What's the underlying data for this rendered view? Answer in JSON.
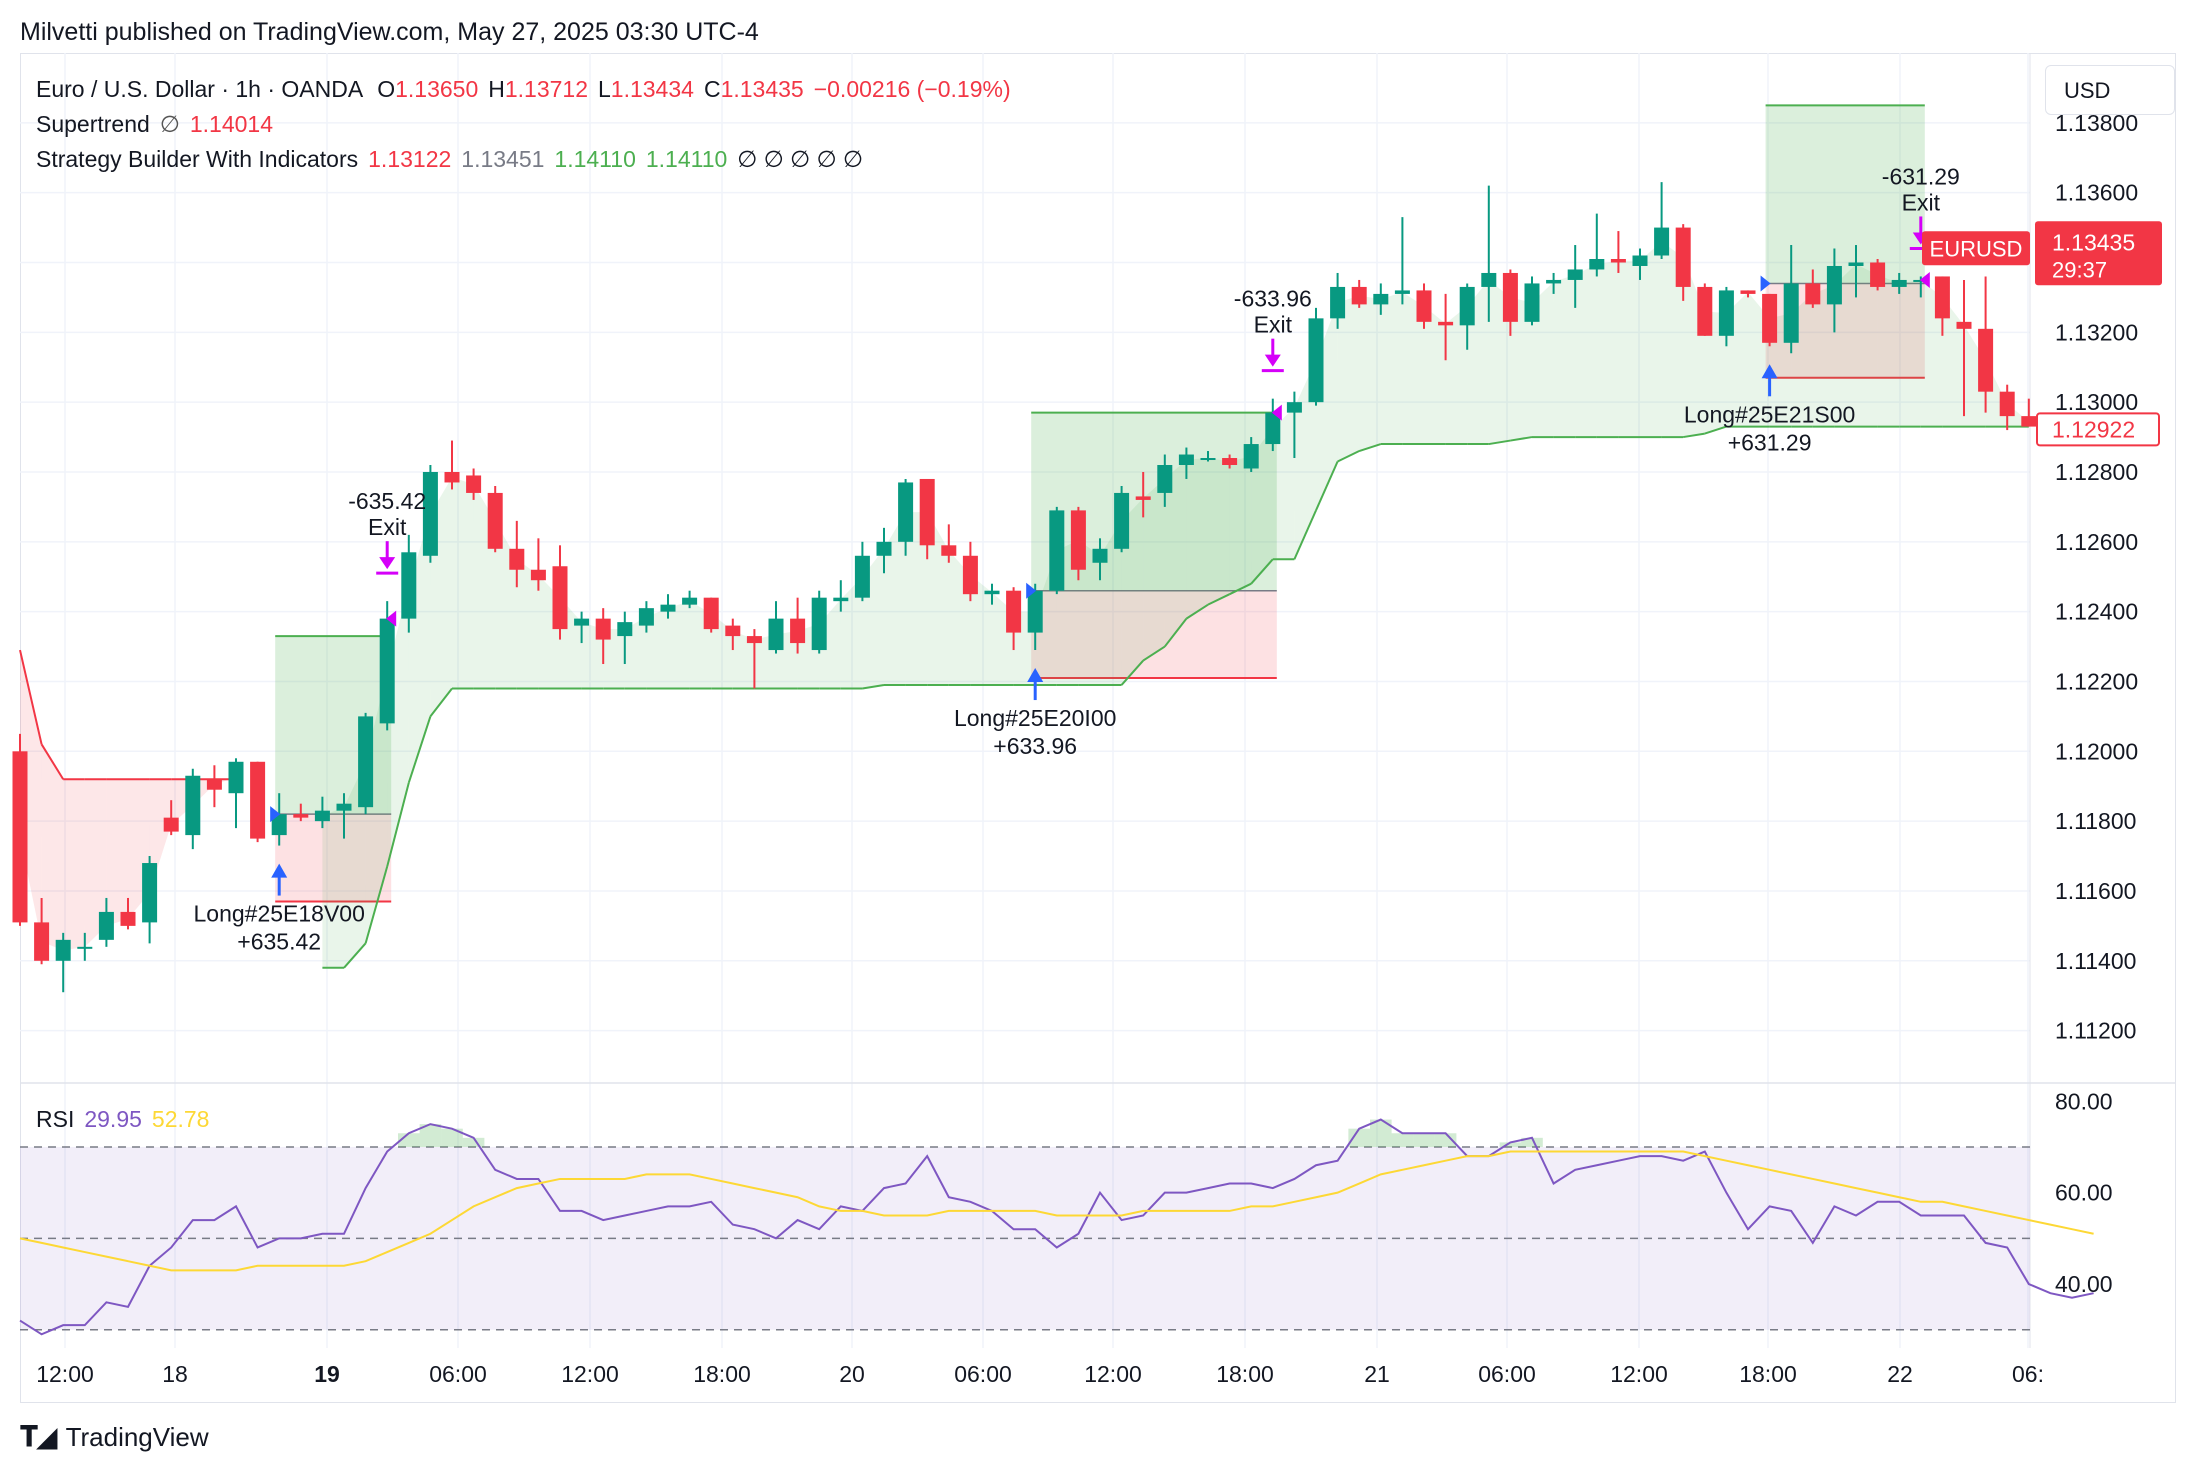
{
  "header": {
    "credit": "Milvetti published on TradingView.com, May 27, 2025 03:30 UTC-4"
  },
  "currency_button": "USD",
  "legend": {
    "symbol": "Euro / U.S. Dollar · 1h · OANDA",
    "o_label": "O",
    "o_value": "1.13650",
    "h_label": "H",
    "h_value": "1.13712",
    "l_label": "L",
    "l_value": "1.13434",
    "c_label": "C",
    "c_value": "1.13435",
    "change": "−0.00216 (−0.19%)",
    "supertrend_label": "Supertrend",
    "supertrend_symbol": "∅",
    "supertrend_value": "1.14014",
    "strategy_label": "Strategy Builder With Indicators",
    "strategy_values": [
      "1.13122",
      "1.13451",
      "1.14110",
      "1.14110"
    ],
    "strategy_empty": "∅ ∅ ∅ ∅ ∅",
    "rsi_label": "RSI",
    "rsi_value": "29.95",
    "rsi_ma_value": "52.78"
  },
  "price_badges": {
    "symbol_tag": "EURUSD",
    "last_price": "1.13435",
    "countdown": "29:37",
    "supertrend_price": "1.12922"
  },
  "footer": {
    "brand": "TradingView"
  },
  "colors": {
    "up": "#089981",
    "down": "#f23645",
    "supertrend_up": "#4caf50",
    "supertrend_down": "#f23645",
    "rsi": "#7e57c2",
    "rsi_ma": "#fdd835",
    "entry_arrow": "#2962ff",
    "exit_arrow": "#d500f9"
  },
  "chart_data": [
    {
      "type": "candlestick",
      "title": "Euro / U.S. Dollar · 1h · OANDA",
      "price_axis": {
        "ticks": [
          "1.13800",
          "1.13600",
          "1.13400",
          "1.13200",
          "1.13000",
          "1.12800",
          "1.12600",
          "1.12400",
          "1.12200",
          "1.12000",
          "1.11800",
          "1.11600",
          "1.11400",
          "1.11200"
        ],
        "ylim": [
          1.1105,
          1.14
        ]
      },
      "time_axis": {
        "labels": [
          "12:00",
          "18",
          "19",
          "06:00",
          "12:00",
          "18:00",
          "20",
          "06:00",
          "12:00",
          "18:00",
          "21",
          "06:00",
          "12:00",
          "18:00",
          "22",
          "06:"
        ],
        "bold": [
          "19"
        ]
      },
      "grid": true,
      "candles": [
        [
          1.12,
          1.1205,
          1.115,
          1.1151
        ],
        [
          1.1151,
          1.1158,
          1.1139,
          1.114
        ],
        [
          1.114,
          1.1148,
          1.1131,
          1.1146
        ],
        [
          1.1144,
          1.1148,
          1.114,
          1.1144
        ],
        [
          1.1146,
          1.1158,
          1.1144,
          1.1154
        ],
        [
          1.1154,
          1.1158,
          1.1149,
          1.115
        ],
        [
          1.1151,
          1.117,
          1.1145,
          1.1168
        ],
        [
          1.1181,
          1.1186,
          1.1176,
          1.1177
        ],
        [
          1.1176,
          1.1195,
          1.1172,
          1.1193
        ],
        [
          1.1192,
          1.1196,
          1.1184,
          1.1189
        ],
        [
          1.1188,
          1.1198,
          1.1178,
          1.1197
        ],
        [
          1.1197,
          1.1197,
          1.1174,
          1.1175
        ],
        [
          1.1176,
          1.1188,
          1.1173,
          1.1182
        ],
        [
          1.1182,
          1.1185,
          1.118,
          1.1181
        ],
        [
          1.118,
          1.1187,
          1.1178,
          1.1183
        ],
        [
          1.1183,
          1.1188,
          1.1175,
          1.1185
        ],
        [
          1.1184,
          1.1211,
          1.1182,
          1.121
        ],
        [
          1.1208,
          1.1243,
          1.1206,
          1.1238
        ],
        [
          1.1238,
          1.1262,
          1.1234,
          1.1257
        ],
        [
          1.1256,
          1.1282,
          1.1254,
          1.128
        ],
        [
          1.128,
          1.1289,
          1.1275,
          1.1277
        ],
        [
          1.1279,
          1.1281,
          1.1272,
          1.1274
        ],
        [
          1.1274,
          1.1276,
          1.1257,
          1.1258
        ],
        [
          1.1258,
          1.1266,
          1.1247,
          1.1252
        ],
        [
          1.1252,
          1.1261,
          1.1246,
          1.1249
        ],
        [
          1.1253,
          1.1259,
          1.1232,
          1.1235
        ],
        [
          1.1236,
          1.124,
          1.1231,
          1.1238
        ],
        [
          1.1238,
          1.1241,
          1.1225,
          1.1232
        ],
        [
          1.1233,
          1.124,
          1.1225,
          1.1237
        ],
        [
          1.1236,
          1.1243,
          1.1234,
          1.1241
        ],
        [
          1.124,
          1.1245,
          1.1238,
          1.1242
        ],
        [
          1.1242,
          1.1246,
          1.1241,
          1.1244
        ],
        [
          1.1244,
          1.1244,
          1.1234,
          1.1235
        ],
        [
          1.1236,
          1.1238,
          1.1229,
          1.1233
        ],
        [
          1.1233,
          1.1235,
          1.1218,
          1.1231
        ],
        [
          1.1229,
          1.1243,
          1.1228,
          1.1238
        ],
        [
          1.1238,
          1.1244,
          1.1228,
          1.1231
        ],
        [
          1.1229,
          1.1246,
          1.1228,
          1.1244
        ],
        [
          1.1243,
          1.1249,
          1.124,
          1.1244
        ],
        [
          1.1244,
          1.126,
          1.1243,
          1.1256
        ],
        [
          1.1256,
          1.1264,
          1.1251,
          1.126
        ],
        [
          1.126,
          1.1278,
          1.1256,
          1.1277
        ],
        [
          1.1278,
          1.1278,
          1.1255,
          1.1259
        ],
        [
          1.1259,
          1.1265,
          1.1254,
          1.1256
        ],
        [
          1.1256,
          1.126,
          1.1243,
          1.1245
        ],
        [
          1.1245,
          1.1248,
          1.1242,
          1.1246
        ],
        [
          1.1246,
          1.1247,
          1.1229,
          1.1234
        ],
        [
          1.1234,
          1.1248,
          1.1229,
          1.1246
        ],
        [
          1.1246,
          1.127,
          1.1245,
          1.1269
        ],
        [
          1.1269,
          1.127,
          1.1249,
          1.1252
        ],
        [
          1.1254,
          1.1261,
          1.1249,
          1.1258
        ],
        [
          1.1258,
          1.1276,
          1.1257,
          1.1274
        ],
        [
          1.1273,
          1.128,
          1.1267,
          1.1272
        ],
        [
          1.1274,
          1.1285,
          1.127,
          1.1282
        ],
        [
          1.1282,
          1.1287,
          1.1278,
          1.1285
        ],
        [
          1.1284,
          1.1286,
          1.1283,
          1.1284
        ],
        [
          1.1284,
          1.1285,
          1.1281,
          1.1282
        ],
        [
          1.1281,
          1.129,
          1.128,
          1.1288
        ],
        [
          1.1288,
          1.1301,
          1.1286,
          1.1297
        ],
        [
          1.1297,
          1.1303,
          1.1284,
          1.13
        ],
        [
          1.13,
          1.1327,
          1.1299,
          1.1324
        ],
        [
          1.1324,
          1.1337,
          1.1321,
          1.1333
        ],
        [
          1.1333,
          1.1335,
          1.1327,
          1.1328
        ],
        [
          1.1328,
          1.1334,
          1.1325,
          1.1331
        ],
        [
          1.1331,
          1.1353,
          1.1328,
          1.1332
        ],
        [
          1.1332,
          1.1334,
          1.1321,
          1.1323
        ],
        [
          1.1323,
          1.1331,
          1.1312,
          1.1322
        ],
        [
          1.1322,
          1.1334,
          1.1315,
          1.1333
        ],
        [
          1.1333,
          1.1362,
          1.1323,
          1.1337
        ],
        [
          1.1337,
          1.1338,
          1.1319,
          1.1323
        ],
        [
          1.1323,
          1.1336,
          1.1322,
          1.1334
        ],
        [
          1.1334,
          1.1337,
          1.1331,
          1.1335
        ],
        [
          1.1335,
          1.1345,
          1.1327,
          1.1338
        ],
        [
          1.1338,
          1.1354,
          1.1336,
          1.1341
        ],
        [
          1.1341,
          1.1349,
          1.1337,
          1.134
        ],
        [
          1.1339,
          1.1344,
          1.1335,
          1.1342
        ],
        [
          1.1342,
          1.1363,
          1.1341,
          1.135
        ],
        [
          1.135,
          1.1351,
          1.1329,
          1.1333
        ],
        [
          1.1333,
          1.1334,
          1.1319,
          1.1319
        ],
        [
          1.1319,
          1.1333,
          1.1316,
          1.1332
        ],
        [
          1.1332,
          1.1332,
          1.133,
          1.1331
        ],
        [
          1.1331,
          1.1331,
          1.1316,
          1.1317
        ],
        [
          1.1317,
          1.1345,
          1.1314,
          1.1334
        ],
        [
          1.1334,
          1.1338,
          1.1327,
          1.1328
        ],
        [
          1.1328,
          1.1344,
          1.132,
          1.1339
        ],
        [
          1.1339,
          1.1345,
          1.133,
          1.134
        ],
        [
          1.134,
          1.1341,
          1.1332,
          1.1333
        ],
        [
          1.1333,
          1.1337,
          1.1331,
          1.1335
        ],
        [
          1.1335,
          1.1336,
          1.133,
          1.1335
        ],
        [
          1.1336,
          1.1336,
          1.1319,
          1.1324
        ],
        [
          1.1323,
          1.1335,
          1.1296,
          1.1321
        ],
        [
          1.1321,
          1.1336,
          1.1297,
          1.1303
        ],
        [
          1.1303,
          1.1305,
          1.1292,
          1.1296
        ],
        [
          1.1296,
          1.1301,
          1.1293,
          1.1293
        ]
      ],
      "supertrend": [
        1.1229,
        1.1202,
        1.1192,
        1.1192,
        1.1192,
        1.1192,
        1.1192,
        1.1192,
        1.1192,
        1.1192,
        1.1192,
        null,
        null,
        null,
        1.1138,
        1.1138,
        1.1145,
        1.1167,
        1.1191,
        1.121,
        1.1218,
        1.1218,
        1.1218,
        1.1218,
        1.1218,
        1.1218,
        1.1218,
        1.1218,
        1.1218,
        1.1218,
        1.1218,
        1.1218,
        1.1218,
        1.1218,
        1.1218,
        1.1218,
        1.1218,
        1.1218,
        1.1218,
        1.1218,
        1.1219,
        1.1219,
        1.1219,
        1.1219,
        1.1219,
        1.1219,
        1.1219,
        1.1219,
        1.1219,
        1.1219,
        1.1219,
        1.1219,
        1.1226,
        1.123,
        1.1238,
        1.1242,
        1.1245,
        1.1248,
        1.1255,
        1.1255,
        1.1269,
        1.1283,
        1.1286,
        1.1288,
        1.1288,
        1.1288,
        1.1288,
        1.1288,
        1.1288,
        1.1289,
        1.129,
        1.129,
        1.129,
        1.129,
        1.129,
        1.129,
        1.129,
        1.129,
        1.1291,
        1.1293,
        1.1293,
        1.1293,
        1.1293,
        1.1293,
        1.1293,
        1.1293,
        1.1293,
        1.1293,
        1.1293,
        1.1293,
        1.1293,
        1.1293,
        1.1293,
        1.1293
      ],
      "supertrend_trend": [
        "down",
        "down",
        "down",
        "down",
        "down",
        "down",
        "down",
        "down",
        "down",
        "down",
        "down",
        "none",
        "none",
        "none",
        "up",
        "up",
        "up",
        "up",
        "up",
        "up",
        "up",
        "up",
        "up",
        "up",
        "up",
        "up",
        "up",
        "up",
        "up",
        "up",
        "up",
        "up",
        "up",
        "up",
        "up",
        "up",
        "up",
        "up",
        "up",
        "up",
        "up",
        "up",
        "up",
        "up",
        "up",
        "up",
        "up",
        "up",
        "up",
        "up",
        "up",
        "up",
        "up",
        "up",
        "up",
        "up",
        "up",
        "up",
        "up",
        "up",
        "up",
        "up",
        "up",
        "up",
        "up",
        "up",
        "up",
        "up",
        "up",
        "up",
        "up",
        "up",
        "up",
        "up",
        "up",
        "up",
        "up",
        "up",
        "up",
        "up",
        "up",
        "up",
        "up",
        "up",
        "up",
        "up",
        "up",
        "up",
        "up",
        "up",
        "up",
        "up",
        "up",
        "up",
        "up",
        "up"
      ],
      "trades": [
        {
          "entry_label": "Long#25E18V00",
          "entry_result": "+635.42",
          "exit_label": "Exit",
          "exit_result": "-635.42",
          "entry_index": 12,
          "exit_index": 17,
          "entry_price": 1.1182,
          "take_profit": 1.1233,
          "stop_loss": 1.1157
        },
        {
          "entry_label": "Long#25E20I00",
          "entry_result": "+633.96",
          "exit_label": "Exit",
          "exit_result": "-633.96",
          "entry_index": 47,
          "exit_index": 58,
          "entry_price": 1.1246,
          "take_profit": 1.1297,
          "stop_loss": 1.1221
        },
        {
          "entry_label": "Long#25E21S00",
          "entry_result": "+631.29",
          "exit_label": "Exit",
          "exit_result": "-631.29",
          "entry_index": 81,
          "exit_index": 88,
          "entry_price": 1.1334,
          "take_profit": 1.1385,
          "stop_loss": 1.1307
        }
      ]
    },
    {
      "type": "line",
      "title": "RSI",
      "y_axis": {
        "ticks": [
          "80.00",
          "60.00",
          "40.00"
        ],
        "ylim": [
          26,
          84
        ],
        "bands": [
          70,
          50,
          30
        ]
      },
      "series": [
        {
          "name": "RSI",
          "values": [
            32,
            29,
            31,
            31,
            36,
            35,
            44,
            48,
            54,
            54,
            57,
            48,
            50,
            50,
            51,
            51,
            61,
            69,
            73,
            75,
            74,
            72,
            65,
            63,
            63,
            56,
            56,
            54,
            55,
            56,
            57,
            57,
            58,
            53,
            52,
            50,
            54,
            52,
            57,
            56,
            61,
            62,
            68,
            59,
            58,
            56,
            52,
            52,
            48,
            51,
            60,
            54,
            55,
            60,
            60,
            61,
            62,
            62,
            61,
            63,
            66,
            67,
            74,
            76,
            73,
            73,
            73,
            68,
            68,
            71,
            72,
            62,
            65,
            66,
            67,
            68,
            68,
            67,
            69,
            60,
            52,
            57,
            56,
            49,
            57,
            55,
            58,
            58,
            55,
            55,
            55,
            49,
            48,
            40,
            38,
            37,
            38
          ]
        },
        {
          "name": "RSI-based MA",
          "values": [
            50,
            49,
            48,
            47,
            46,
            45,
            44,
            43,
            43,
            43,
            43,
            44,
            44,
            44,
            44,
            44,
            45,
            47,
            49,
            51,
            54,
            57,
            59,
            61,
            62,
            63,
            63,
            63,
            63,
            64,
            64,
            64,
            63,
            62,
            61,
            60,
            59,
            57,
            56,
            56,
            55,
            55,
            55,
            56,
            56,
            56,
            56,
            56,
            55,
            55,
            55,
            55,
            56,
            56,
            56,
            56,
            56,
            57,
            57,
            58,
            59,
            60,
            62,
            64,
            65,
            66,
            67,
            68,
            68,
            69,
            69,
            69,
            69,
            69,
            69,
            69,
            69,
            69,
            68,
            67,
            66,
            65,
            64,
            63,
            62,
            61,
            60,
            59,
            58,
            58,
            57,
            56,
            55,
            54,
            53,
            52,
            51
          ]
        }
      ]
    }
  ]
}
